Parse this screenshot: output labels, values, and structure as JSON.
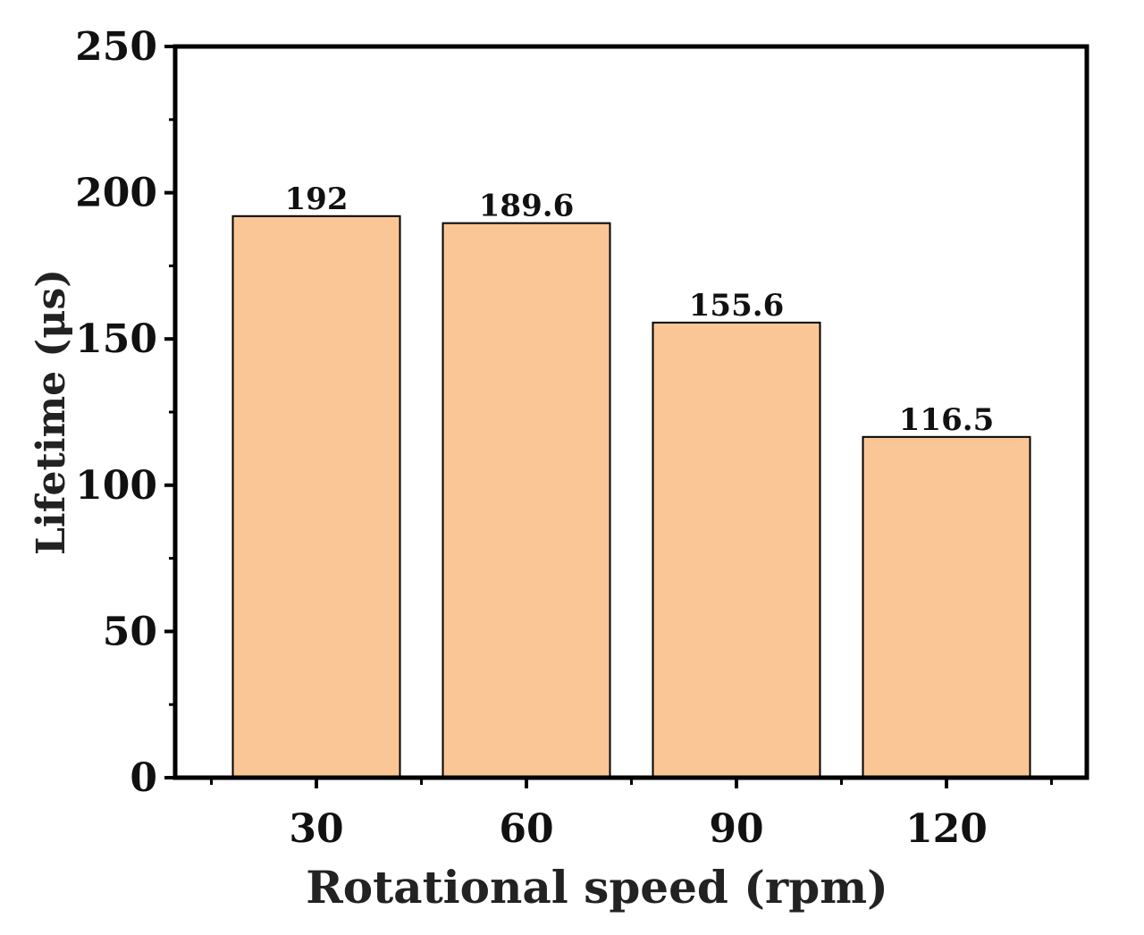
{
  "chart_data": {
    "type": "bar",
    "xlabel": "Rotational speed (rpm)",
    "ylabel": "Lifetime (μs)",
    "categories": [
      "30",
      "60",
      "90",
      "120"
    ],
    "values": [
      192,
      189.6,
      155.6,
      116.5
    ],
    "value_labels": [
      "192",
      "189.6",
      "155.6",
      "116.5"
    ],
    "ylim": [
      0,
      250
    ],
    "yticks": [
      0,
      50,
      100,
      150,
      200,
      250
    ],
    "ytick_labels": [
      "0",
      "50",
      "100",
      "150",
      "200",
      "250"
    ],
    "bar_color": "#FBC695",
    "bar_edge_color": "#000000",
    "grid": false,
    "legend": "none"
  }
}
